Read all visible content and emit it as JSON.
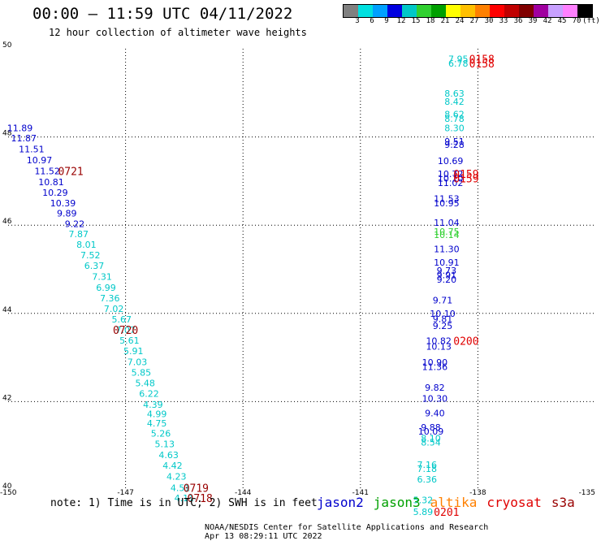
{
  "title": "00:00 – 11:59 UTC 04/11/2022",
  "subtitle": "12 hour collection of altimeter wave heights",
  "note": "note: 1) Time is in UTC; 2) SWH is in feet",
  "footer": {
    "credit": "NOAA/NESDIS Center for Satellite Applications and Research",
    "timestamp": "Apr 13 08:29:11 UTC 2022"
  },
  "color_scale": {
    "labels": [
      "3",
      "6",
      "9",
      "12",
      "15",
      "18",
      "21",
      "24",
      "27",
      "30",
      "33",
      "36",
      "39",
      "42",
      "45",
      "70",
      "(ft)"
    ],
    "colors": [
      "#808080",
      "#00e0e0",
      "#00a0ff",
      "#0000e0",
      "#00c8c8",
      "#30d030",
      "#00a000",
      "#ffff00",
      "#ffc000",
      "#ff8000",
      "#ff0000",
      "#c00000",
      "#800000",
      "#a000a0",
      "#c8a0ff",
      "#ff80ff",
      "#000000"
    ]
  },
  "missions": [
    {
      "name": "jason2",
      "color": "#0000cc"
    },
    {
      "name": "jason3",
      "color": "#00a000"
    },
    {
      "name": "altika",
      "color": "#ff8000"
    },
    {
      "name": "cryosat",
      "color": "#e00000"
    },
    {
      "name": "s3a",
      "color": "#990000"
    }
  ],
  "chart_data": {
    "type": "scatter",
    "xlim": [
      -150,
      -135
    ],
    "ylim": [
      40,
      50
    ],
    "x_ticks": [
      {
        "v": -150,
        "label": "-150"
      },
      {
        "v": -147,
        "label": "-147"
      },
      {
        "v": -144,
        "label": "-144"
      },
      {
        "v": -141,
        "label": "-141"
      },
      {
        "v": -138,
        "label": "-138"
      },
      {
        "v": -135,
        "label": "-135"
      }
    ],
    "y_ticks": [
      {
        "v": 40,
        "label": "40"
      },
      {
        "v": 42,
        "label": "42"
      },
      {
        "v": 44,
        "label": "44"
      },
      {
        "v": 46,
        "label": "46"
      },
      {
        "v": 48,
        "label": "48"
      },
      {
        "v": 50,
        "label": "50"
      }
    ],
    "grid": true,
    "points": [
      {
        "lon": -149.7,
        "lat": 48.2,
        "swh": "11.89",
        "color": "#0000cc"
      },
      {
        "lon": -149.6,
        "lat": 47.97,
        "swh": "11.87",
        "color": "#0000cc"
      },
      {
        "lon": -149.4,
        "lat": 47.73,
        "swh": "11.51",
        "color": "#0000cc"
      },
      {
        "lon": -149.2,
        "lat": 47.48,
        "swh": "10.97",
        "color": "#0000cc"
      },
      {
        "lon": -149.0,
        "lat": 47.23,
        "swh": "11.52",
        "color": "#0000cc"
      },
      {
        "lon": -148.9,
        "lat": 46.98,
        "swh": "10.81",
        "color": "#0000cc"
      },
      {
        "lon": -148.8,
        "lat": 46.74,
        "swh": "10.29",
        "color": "#0000cc"
      },
      {
        "lon": -148.6,
        "lat": 46.5,
        "swh": "10.39",
        "color": "#0000cc"
      },
      {
        "lon": -148.5,
        "lat": 46.27,
        "swh": "9.89",
        "color": "#0000cc"
      },
      {
        "lon": -148.3,
        "lat": 46.03,
        "swh": "9.22",
        "color": "#0000cc"
      },
      {
        "lon": -148.2,
        "lat": 45.8,
        "swh": "7.87",
        "color": "#00c8c8"
      },
      {
        "lon": -148.0,
        "lat": 45.56,
        "swh": "8.01",
        "color": "#00c8c8"
      },
      {
        "lon": -147.9,
        "lat": 45.32,
        "swh": "7.52",
        "color": "#00c8c8"
      },
      {
        "lon": -147.8,
        "lat": 45.08,
        "swh": "6.37",
        "color": "#00c8c8"
      },
      {
        "lon": -147.6,
        "lat": 44.83,
        "swh": "7.31",
        "color": "#00c8c8"
      },
      {
        "lon": -147.5,
        "lat": 44.59,
        "swh": "6.99",
        "color": "#00c8c8"
      },
      {
        "lon": -147.4,
        "lat": 44.35,
        "swh": "7.36",
        "color": "#00c8c8"
      },
      {
        "lon": -147.3,
        "lat": 44.11,
        "swh": "7.02",
        "color": "#00c8c8"
      },
      {
        "lon": -147.1,
        "lat": 43.87,
        "swh": "5.67",
        "color": "#00c8c8"
      },
      {
        "lon": -147.0,
        "lat": 43.63,
        "swh": "7.07",
        "color": "#00c8c8"
      },
      {
        "lon": -146.9,
        "lat": 43.39,
        "swh": "5.61",
        "color": "#00c8c8"
      },
      {
        "lon": -146.8,
        "lat": 43.15,
        "swh": "5.91",
        "color": "#00c8c8"
      },
      {
        "lon": -146.7,
        "lat": 42.9,
        "swh": "7.03",
        "color": "#00c8c8"
      },
      {
        "lon": -146.6,
        "lat": 42.66,
        "swh": "5.85",
        "color": "#00c8c8"
      },
      {
        "lon": -146.5,
        "lat": 42.42,
        "swh": "5.48",
        "color": "#00c8c8"
      },
      {
        "lon": -146.4,
        "lat": 42.18,
        "swh": "6.22",
        "color": "#00c8c8"
      },
      {
        "lon": -146.3,
        "lat": 41.93,
        "swh": "4.39",
        "color": "#00c8c8"
      },
      {
        "lon": -146.2,
        "lat": 41.72,
        "swh": "4.99",
        "color": "#00c8c8"
      },
      {
        "lon": -146.2,
        "lat": 41.51,
        "swh": "4.75",
        "color": "#00c8c8"
      },
      {
        "lon": -146.1,
        "lat": 41.28,
        "swh": "5.26",
        "color": "#00c8c8"
      },
      {
        "lon": -146.0,
        "lat": 41.04,
        "swh": "5.13",
        "color": "#00c8c8"
      },
      {
        "lon": -145.9,
        "lat": 40.79,
        "swh": "4.63",
        "color": "#00c8c8"
      },
      {
        "lon": -145.8,
        "lat": 40.55,
        "swh": "4.42",
        "color": "#00c8c8"
      },
      {
        "lon": -145.7,
        "lat": 40.3,
        "swh": "4.23",
        "color": "#00c8c8"
      },
      {
        "lon": -145.6,
        "lat": 40.05,
        "swh": "4.51",
        "color": "#00c8c8"
      },
      {
        "lon": -145.5,
        "lat": 39.82,
        "swh": "4.11",
        "color": "#00c8c8"
      },
      {
        "lon": -138.5,
        "lat": 49.77,
        "swh": "7.95",
        "color": "#00c8c8"
      },
      {
        "lon": -138.5,
        "lat": 49.67,
        "swh": "6.78",
        "color": "#00c8c8"
      },
      {
        "lon": -138.6,
        "lat": 48.99,
        "swh": "8.63",
        "color": "#00c8c8"
      },
      {
        "lon": -138.6,
        "lat": 48.8,
        "swh": "8.42",
        "color": "#00c8c8"
      },
      {
        "lon": -138.6,
        "lat": 48.52,
        "swh": "8.62",
        "color": "#00c8c8"
      },
      {
        "lon": -138.6,
        "lat": 48.42,
        "swh": "8.78",
        "color": "#00c8c8"
      },
      {
        "lon": -138.6,
        "lat": 48.2,
        "swh": "8.30",
        "color": "#00c8c8"
      },
      {
        "lon": -138.6,
        "lat": 47.9,
        "swh": "9.51",
        "color": "#0000cc"
      },
      {
        "lon": -138.6,
        "lat": 47.83,
        "swh": "9.28",
        "color": "#0000cc"
      },
      {
        "lon": -138.7,
        "lat": 47.46,
        "swh": "10.69",
        "color": "#0000cc"
      },
      {
        "lon": -138.7,
        "lat": 47.16,
        "swh": "10.72",
        "color": "#0000cc"
      },
      {
        "lon": -138.7,
        "lat": 47.06,
        "swh": "10.70",
        "color": "#0000cc"
      },
      {
        "lon": -138.7,
        "lat": 46.96,
        "swh": "11.02",
        "color": "#0000cc"
      },
      {
        "lon": -138.8,
        "lat": 46.6,
        "swh": "11.53",
        "color": "#0000cc"
      },
      {
        "lon": -138.8,
        "lat": 46.5,
        "swh": "10.95",
        "color": "#0000cc"
      },
      {
        "lon": -138.8,
        "lat": 46.06,
        "swh": "11.04",
        "color": "#0000cc"
      },
      {
        "lon": -138.8,
        "lat": 45.86,
        "swh": "10.75",
        "color": "#30d030"
      },
      {
        "lon": -138.8,
        "lat": 45.78,
        "swh": "10.14",
        "color": "#30d030"
      },
      {
        "lon": -138.8,
        "lat": 45.46,
        "swh": "11.30",
        "color": "#0000cc"
      },
      {
        "lon": -138.8,
        "lat": 45.16,
        "swh": "10.91",
        "color": "#0000cc"
      },
      {
        "lon": -138.8,
        "lat": 44.97,
        "swh": "9.73",
        "color": "#0000cc"
      },
      {
        "lon": -138.8,
        "lat": 44.87,
        "swh": "9.91",
        "color": "#0000cc"
      },
      {
        "lon": -138.8,
        "lat": 44.77,
        "swh": "9.20",
        "color": "#0000cc"
      },
      {
        "lon": -138.9,
        "lat": 44.3,
        "swh": "9.71",
        "color": "#0000cc"
      },
      {
        "lon": -138.9,
        "lat": 44.0,
        "swh": "10.10",
        "color": "#0000cc"
      },
      {
        "lon": -138.9,
        "lat": 43.88,
        "swh": "9.81",
        "color": "#0000cc"
      },
      {
        "lon": -138.9,
        "lat": 43.72,
        "swh": "9.25",
        "color": "#0000cc"
      },
      {
        "lon": -139.0,
        "lat": 43.38,
        "swh": "10.82",
        "color": "#0000cc"
      },
      {
        "lon": -139.0,
        "lat": 43.25,
        "swh": "10.13",
        "color": "#0000cc"
      },
      {
        "lon": -139.1,
        "lat": 42.89,
        "swh": "10.90",
        "color": "#0000cc"
      },
      {
        "lon": -139.1,
        "lat": 42.79,
        "swh": "11.36",
        "color": "#0000cc"
      },
      {
        "lon": -139.1,
        "lat": 42.32,
        "swh": "9.82",
        "color": "#0000cc"
      },
      {
        "lon": -139.1,
        "lat": 42.07,
        "swh": "10.30",
        "color": "#0000cc"
      },
      {
        "lon": -139.1,
        "lat": 41.74,
        "swh": "9.40",
        "color": "#0000cc"
      },
      {
        "lon": -139.2,
        "lat": 41.42,
        "swh": "9.88",
        "color": "#0000cc"
      },
      {
        "lon": -139.2,
        "lat": 41.33,
        "swh": "10.09",
        "color": "#0000cc"
      },
      {
        "lon": -139.2,
        "lat": 41.17,
        "swh": "8.10",
        "color": "#00c8c8"
      },
      {
        "lon": -139.2,
        "lat": 41.08,
        "swh": "8.54",
        "color": "#00c8c8"
      },
      {
        "lon": -139.3,
        "lat": 40.57,
        "swh": "7.16",
        "color": "#00c8c8"
      },
      {
        "lon": -139.3,
        "lat": 40.48,
        "swh": "7.18",
        "color": "#00c8c8"
      },
      {
        "lon": -139.3,
        "lat": 40.24,
        "swh": "6.36",
        "color": "#00c8c8"
      },
      {
        "lon": -139.4,
        "lat": 39.77,
        "swh": "5.32",
        "color": "#00c8c8"
      },
      {
        "lon": -139.4,
        "lat": 39.5,
        "swh": "5.89",
        "color": "#00c8c8"
      }
    ],
    "time_labels": [
      {
        "lon": -148.4,
        "lat": 47.23,
        "text": "0721",
        "color": "#990000"
      },
      {
        "lon": -147.0,
        "lat": 43.63,
        "text": "0720",
        "color": "#990000"
      },
      {
        "lon": -145.2,
        "lat": 40.05,
        "text": "0719",
        "color": "#990000"
      },
      {
        "lon": -145.1,
        "lat": 39.82,
        "text": "0718",
        "color": "#990000"
      },
      {
        "lon": -137.9,
        "lat": 49.77,
        "text": "0158",
        "color": "#e00000"
      },
      {
        "lon": -137.9,
        "lat": 49.67,
        "text": "0158",
        "color": "#e00000"
      },
      {
        "lon": -138.3,
        "lat": 47.16,
        "text": "0159",
        "color": "#e00000"
      },
      {
        "lon": -138.3,
        "lat": 47.06,
        "text": "0159",
        "color": "#e00000"
      },
      {
        "lon": -138.3,
        "lat": 43.38,
        "text": "0200",
        "color": "#e00000"
      },
      {
        "lon": -138.8,
        "lat": 39.5,
        "text": "0201",
        "color": "#e00000"
      }
    ]
  }
}
